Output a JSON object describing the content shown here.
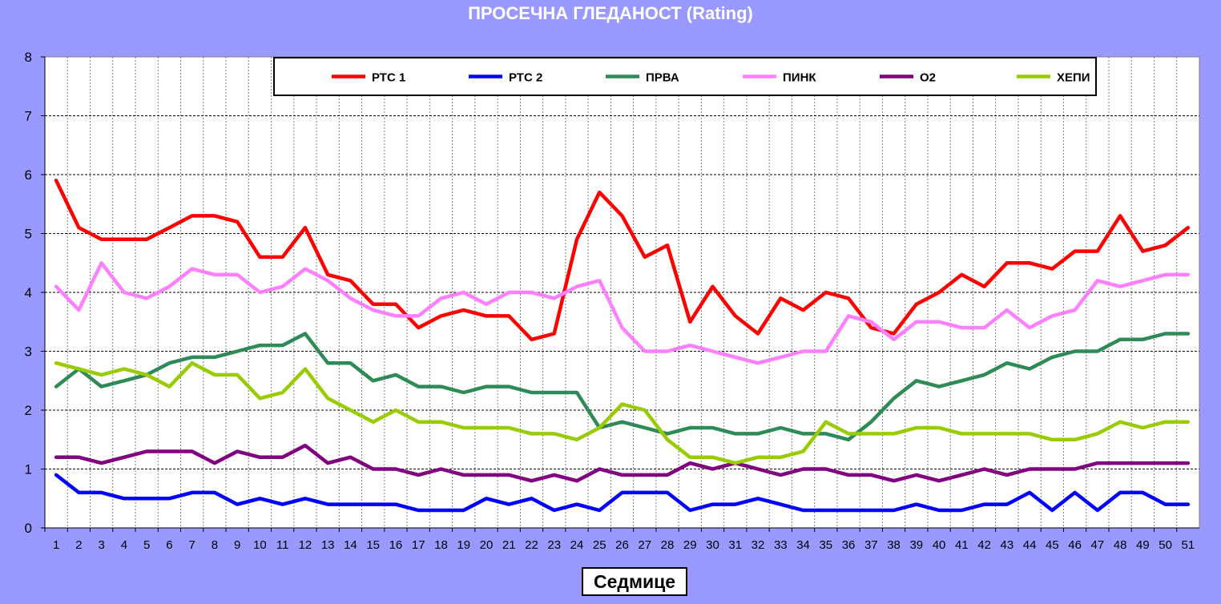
{
  "chart_data": {
    "type": "line",
    "title": "ПРОСЕЧНА ГЛЕДАНОСТ (Rating)",
    "xlabel": "Седмице",
    "ylabel": "",
    "ylim": [
      0,
      8
    ],
    "yticks": [
      "0",
      "1",
      "2",
      "3",
      "4",
      "5",
      "6",
      "7",
      "8"
    ],
    "categories": [
      "1",
      "2",
      "3",
      "4",
      "5",
      "6",
      "7",
      "8",
      "9",
      "10",
      "11",
      "12",
      "13",
      "14",
      "15",
      "16",
      "17",
      "18",
      "19",
      "20",
      "21",
      "22",
      "23",
      "24",
      "25",
      "26",
      "27",
      "28",
      "29",
      "30",
      "31",
      "32",
      "33",
      "34",
      "35",
      "36",
      "37",
      "38",
      "39",
      "40",
      "41",
      "42",
      "43",
      "44",
      "45",
      "46",
      "47",
      "48",
      "49",
      "50",
      "51"
    ],
    "grid": true,
    "legend_position": "top",
    "series": [
      {
        "name": "РТС 1",
        "color": "#ff0000",
        "values": [
          5.9,
          5.1,
          4.9,
          4.9,
          4.9,
          5.1,
          5.3,
          5.3,
          5.2,
          4.6,
          4.6,
          5.1,
          4.3,
          4.2,
          3.8,
          3.8,
          3.4,
          3.6,
          3.7,
          3.6,
          3.6,
          3.2,
          3.3,
          4.9,
          5.7,
          5.3,
          4.6,
          4.8,
          3.5,
          4.1,
          3.6,
          3.3,
          3.9,
          3.7,
          4.0,
          3.9,
          3.4,
          3.3,
          3.8,
          4.0,
          4.3,
          4.1,
          4.5,
          4.5,
          4.4,
          4.7,
          4.7,
          5.3,
          4.7,
          4.8,
          5.1
        ]
      },
      {
        "name": "РТС 2",
        "color": "#0000ff",
        "values": [
          0.9,
          0.6,
          0.6,
          0.5,
          0.5,
          0.5,
          0.6,
          0.6,
          0.4,
          0.5,
          0.4,
          0.5,
          0.4,
          0.4,
          0.4,
          0.4,
          0.3,
          0.3,
          0.3,
          0.5,
          0.4,
          0.5,
          0.3,
          0.4,
          0.3,
          0.6,
          0.6,
          0.6,
          0.3,
          0.4,
          0.4,
          0.5,
          0.4,
          0.3,
          0.3,
          0.3,
          0.3,
          0.3,
          0.4,
          0.3,
          0.3,
          0.4,
          0.4,
          0.6,
          0.3,
          0.6,
          0.3,
          0.6,
          0.6,
          0.4,
          0.4
        ]
      },
      {
        "name": "ПРВА",
        "color": "#2e8b57",
        "values": [
          2.4,
          2.7,
          2.4,
          2.5,
          2.6,
          2.8,
          2.9,
          2.9,
          3.0,
          3.1,
          3.1,
          3.3,
          2.8,
          2.8,
          2.5,
          2.6,
          2.4,
          2.4,
          2.3,
          2.4,
          2.4,
          2.3,
          2.3,
          2.3,
          1.7,
          1.8,
          1.7,
          1.6,
          1.7,
          1.7,
          1.6,
          1.6,
          1.7,
          1.6,
          1.6,
          1.5,
          1.8,
          2.2,
          2.5,
          2.4,
          2.5,
          2.6,
          2.8,
          2.7,
          2.9,
          3.0,
          3.0,
          3.2,
          3.2,
          3.3,
          3.3
        ]
      },
      {
        "name": "ПИНК",
        "color": "#ff80ff",
        "values": [
          4.1,
          3.7,
          4.5,
          4.0,
          3.9,
          4.1,
          4.4,
          4.3,
          4.3,
          4.0,
          4.1,
          4.4,
          4.2,
          3.9,
          3.7,
          3.6,
          3.6,
          3.9,
          4.0,
          3.8,
          4.0,
          4.0,
          3.9,
          4.1,
          4.2,
          3.4,
          3.0,
          3.0,
          3.1,
          3.0,
          2.9,
          2.8,
          2.9,
          3.0,
          3.0,
          3.6,
          3.5,
          3.2,
          3.5,
          3.5,
          3.4,
          3.4,
          3.7,
          3.4,
          3.6,
          3.7,
          4.2,
          4.1,
          4.2,
          4.3,
          4.3
        ]
      },
      {
        "name": "О2",
        "color": "#800080",
        "values": [
          1.2,
          1.2,
          1.1,
          1.2,
          1.3,
          1.3,
          1.3,
          1.1,
          1.3,
          1.2,
          1.2,
          1.4,
          1.1,
          1.2,
          1.0,
          1.0,
          0.9,
          1.0,
          0.9,
          0.9,
          0.9,
          0.8,
          0.9,
          0.8,
          1.0,
          0.9,
          0.9,
          0.9,
          1.1,
          1.0,
          1.1,
          1.0,
          0.9,
          1.0,
          1.0,
          0.9,
          0.9,
          0.8,
          0.9,
          0.8,
          0.9,
          1.0,
          0.9,
          1.0,
          1.0,
          1.0,
          1.1,
          1.1,
          1.1,
          1.1,
          1.1
        ]
      },
      {
        "name": "ХЕПИ",
        "color": "#99cc00",
        "values": [
          2.8,
          2.7,
          2.6,
          2.7,
          2.6,
          2.4,
          2.8,
          2.6,
          2.6,
          2.2,
          2.3,
          2.7,
          2.2,
          2.0,
          1.8,
          2.0,
          1.8,
          1.8,
          1.7,
          1.7,
          1.7,
          1.6,
          1.6,
          1.5,
          1.7,
          2.1,
          2.0,
          1.5,
          1.2,
          1.2,
          1.1,
          1.2,
          1.2,
          1.3,
          1.8,
          1.6,
          1.6,
          1.6,
          1.7,
          1.7,
          1.6,
          1.6,
          1.6,
          1.6,
          1.5,
          1.5,
          1.6,
          1.8,
          1.7,
          1.8,
          1.8
        ]
      }
    ]
  }
}
